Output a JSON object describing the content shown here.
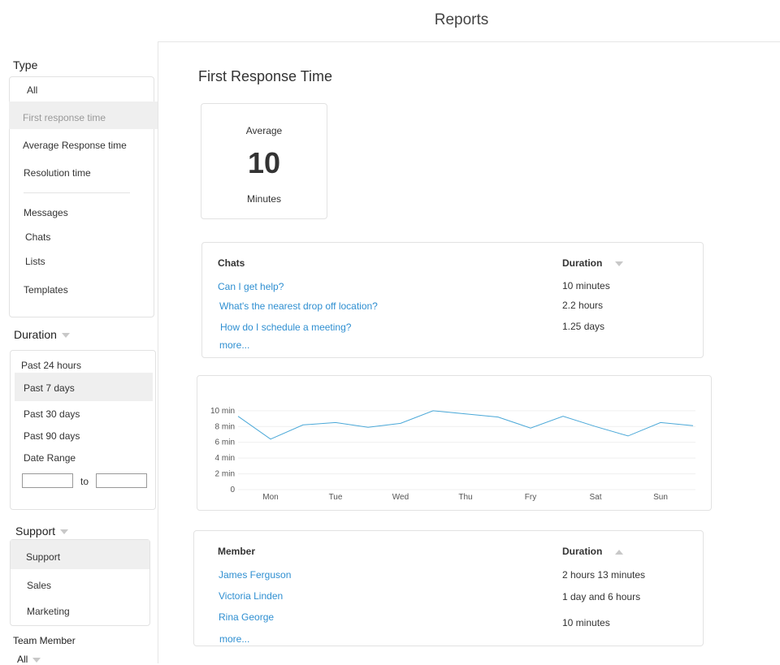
{
  "header": {
    "title": "Reports"
  },
  "sidebar": {
    "type_label": "Type",
    "type_items": [
      "All",
      "First response time",
      "Average Response time",
      "Resolution time",
      "Messages",
      "Chats",
      "Lists",
      "Templates"
    ],
    "duration_label": "Duration",
    "duration_items": [
      "Past 24 hours",
      "Past 7 days",
      "Past 30 days",
      "Past 90 days",
      "Date Range"
    ],
    "date_range": {
      "to_label": "to",
      "from_value": "",
      "to_value": ""
    },
    "support_label": "Support",
    "support_items": [
      "Support",
      "Sales",
      "Marketing"
    ],
    "team_member_label": "Team Member",
    "team_member_value": "All"
  },
  "main": {
    "title": "First Response Time",
    "stat": {
      "label": "Average",
      "value": "10",
      "unit": "Minutes"
    },
    "chats_table": {
      "col_chats": "Chats",
      "col_duration": "Duration",
      "rows": [
        {
          "chat": "Can I get help?",
          "duration": "10 minutes"
        },
        {
          "chat": "What's the nearest drop off location?",
          "duration": "2.2 hours"
        },
        {
          "chat": "How do I schedule a meeting?",
          "duration": "1.25 days"
        }
      ],
      "more": "more..."
    },
    "members_table": {
      "col_member": "Member",
      "col_duration": "Duration",
      "rows": [
        {
          "member": "James Ferguson",
          "duration": "2 hours 13 minutes"
        },
        {
          "member": "Victoria Linden",
          "duration": "1 day and 6 hours"
        },
        {
          "member": "Rina George",
          "duration": "10 minutes"
        }
      ],
      "more": "more..."
    }
  },
  "chart_data": {
    "type": "line",
    "categories": [
      "Mon",
      "Tue",
      "Wed",
      "Thu",
      "Fry",
      "Sat",
      "Sun"
    ],
    "x": [
      -0.5,
      0.0,
      0.5,
      1.0,
      1.5,
      2.0,
      2.5,
      3.0,
      3.5,
      4.0,
      4.5,
      5.0,
      5.5,
      6.0,
      6.5
    ],
    "series": [
      {
        "values": [
          9.3,
          6.4,
          8.2,
          8.5,
          7.9,
          8.4,
          10.0,
          9.6,
          9.2,
          7.8,
          9.3,
          8.0,
          6.8,
          8.5,
          8.1
        ],
        "color": "#4aa8d8"
      }
    ],
    "y_ticks": [
      "0",
      "2 min",
      "4 min",
      "6 min",
      "8 min",
      "10 min"
    ],
    "ylim": [
      0,
      10.5
    ],
    "grid": true
  }
}
